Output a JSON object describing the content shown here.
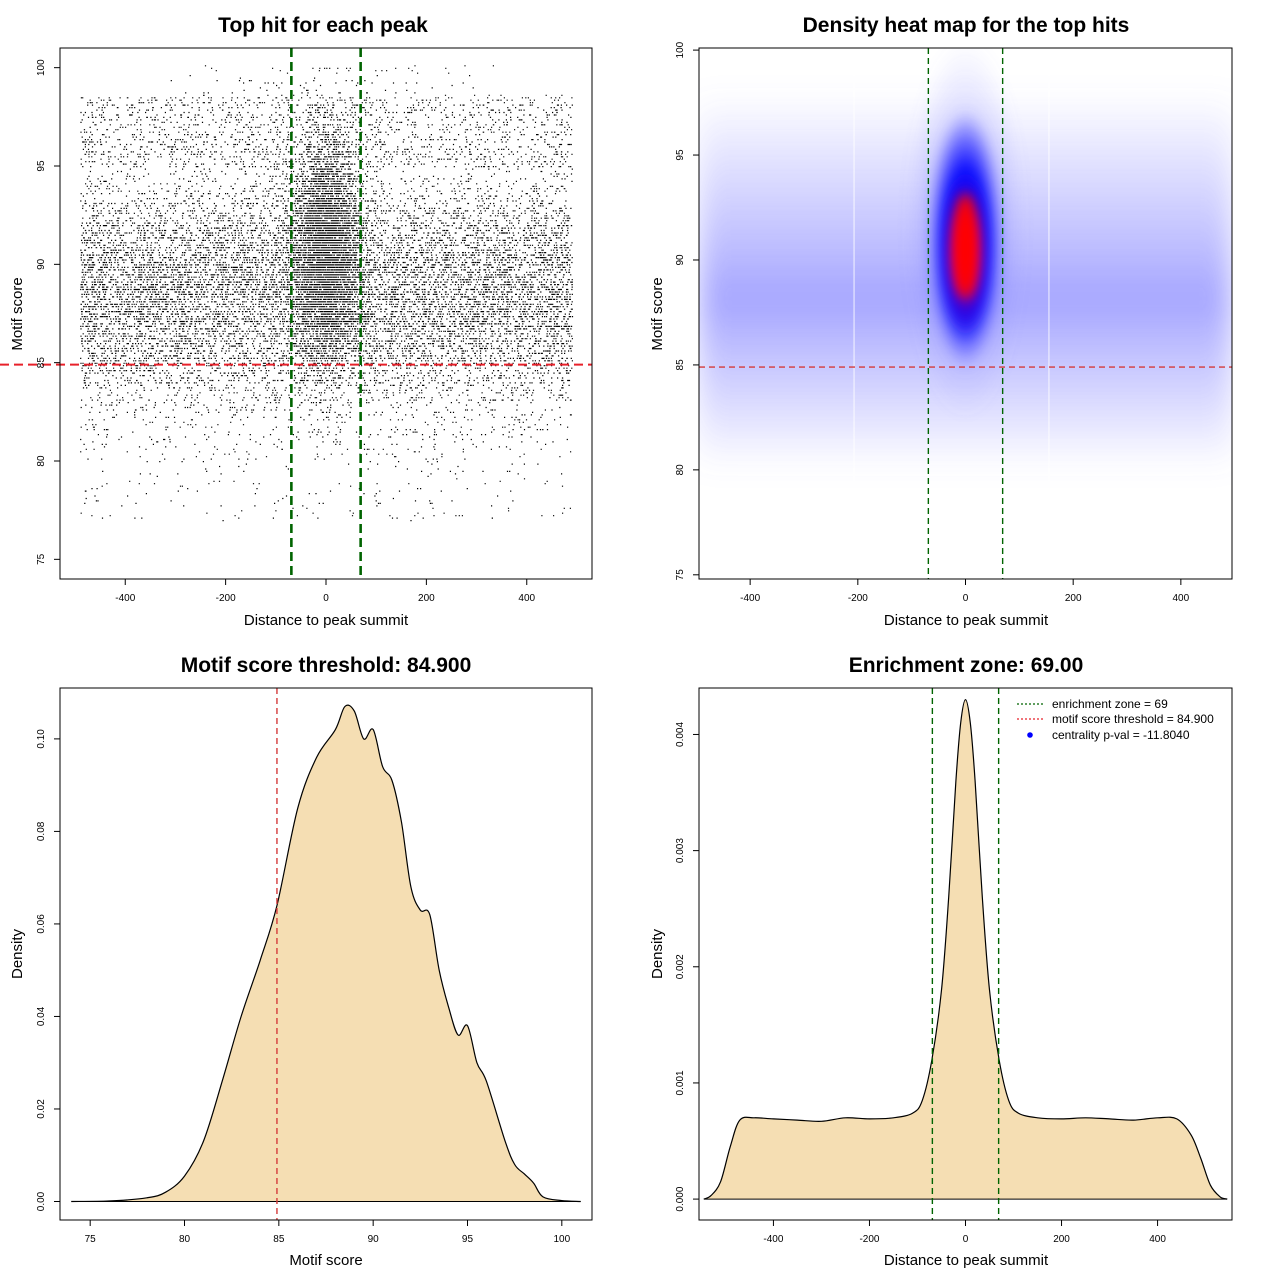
{
  "chart_data": [
    {
      "type": "scatter",
      "title": "Top hit for each peak",
      "xlabel": "Distance to peak summit",
      "ylabel": "Motif score",
      "xlim": [
        -530,
        530
      ],
      "ylim": [
        74,
        101
      ],
      "xticks": [
        -400,
        -200,
        0,
        200,
        400
      ],
      "yticks": [
        75,
        80,
        85,
        90,
        95,
        100
      ],
      "vlines": [
        -69,
        69
      ],
      "hline": 84.9,
      "colors": {
        "points": "#000000",
        "vlines": "#006400",
        "hline": "#e8202a"
      },
      "points_description": "dense top motif hits spanning x in [-490, 490], y mostly 80-100, concentrated near x=0 and y=86-95"
    },
    {
      "type": "heatmap",
      "title": "Density heat map for the top hits",
      "xlabel": "Distance to peak summit",
      "ylabel": "Motif score",
      "xlim": [
        -495,
        495
      ],
      "ylim": [
        74.8,
        100.1
      ],
      "xticks": [
        -400,
        -200,
        0,
        200,
        400
      ],
      "yticks": [
        75,
        80,
        85,
        90,
        95,
        100
      ],
      "vlines": [
        -69,
        69
      ],
      "hline": 84.9,
      "peak": {
        "x": 0,
        "y": 90.3
      },
      "colors": {
        "low": "#ffffff",
        "mid": "#0000ff",
        "high": "#ff0000",
        "vlines": "#006400",
        "hline": "#d43a3a"
      }
    },
    {
      "type": "area",
      "title": "Motif score threshold: 84.900",
      "xlabel": "Motif score",
      "ylabel": "Density",
      "xlim": [
        73.4,
        101.6
      ],
      "ylim": [
        -0.004,
        0.111
      ],
      "xticks": [
        75,
        80,
        85,
        90,
        95,
        100
      ],
      "yticks": [
        0.0,
        0.02,
        0.04,
        0.06,
        0.08,
        0.1
      ],
      "ytick_labels": [
        "0.00",
        "0.02",
        "0.04",
        "0.06",
        "0.08",
        "0.10"
      ],
      "vline": 84.9,
      "fill": "#f5deb3",
      "colors": {
        "vline": "#d43a3a"
      },
      "x": [
        74,
        76,
        78,
        79,
        80,
        81,
        82,
        83,
        84,
        84.9,
        86,
        87,
        88,
        88.5,
        89,
        89.5,
        90,
        90.5,
        91,
        91.5,
        92,
        92.5,
        93,
        93.5,
        94,
        94.5,
        95,
        95.5,
        96,
        97,
        97.5,
        98,
        98.5,
        99,
        100,
        101
      ],
      "y": [
        0.0,
        0.0001,
        0.0008,
        0.002,
        0.0055,
        0.013,
        0.026,
        0.04,
        0.052,
        0.064,
        0.085,
        0.096,
        0.102,
        0.107,
        0.106,
        0.1,
        0.102,
        0.094,
        0.091,
        0.082,
        0.068,
        0.063,
        0.062,
        0.05,
        0.042,
        0.036,
        0.038,
        0.03,
        0.026,
        0.013,
        0.008,
        0.006,
        0.004,
        0.001,
        0.0002,
        0.0
      ]
    },
    {
      "type": "area",
      "title": "Enrichment zone: 69.00",
      "xlabel": "Distance to peak summit",
      "ylabel": "Density",
      "xlim": [
        -555,
        555
      ],
      "ylim": [
        -0.00018,
        0.0044
      ],
      "xticks": [
        -400,
        -200,
        0,
        200,
        400
      ],
      "yticks": [
        0.0,
        0.001,
        0.002,
        0.003,
        0.004
      ],
      "ytick_labels": [
        "0.000",
        "0.001",
        "0.002",
        "0.003",
        "0.004"
      ],
      "vlines": [
        -69,
        69
      ],
      "fill": "#f5deb3",
      "colors": {
        "vlines": "#006400"
      },
      "x": [
        -545,
        -530,
        -510,
        -490,
        -470,
        -440,
        -400,
        -350,
        -300,
        -250,
        -200,
        -150,
        -110,
        -90,
        -70,
        -50,
        -35,
        -20,
        -10,
        0,
        10,
        20,
        35,
        50,
        70,
        90,
        110,
        150,
        200,
        250,
        300,
        350,
        400,
        440,
        470,
        490,
        510,
        530,
        545
      ],
      "y": [
        0.0,
        3e-05,
        0.00015,
        0.00045,
        0.00068,
        0.0007,
        0.00069,
        0.00068,
        0.00067,
        0.0007,
        0.00069,
        0.0007,
        0.00074,
        0.00085,
        0.0012,
        0.0018,
        0.0026,
        0.0036,
        0.0041,
        0.0043,
        0.0041,
        0.0036,
        0.0026,
        0.0018,
        0.0012,
        0.00085,
        0.00074,
        0.0007,
        0.00069,
        0.0007,
        0.00069,
        0.00068,
        0.0007,
        0.00069,
        0.00055,
        0.00035,
        0.00012,
        2e-05,
        0.0
      ],
      "legend": [
        {
          "label": "enrichment zone = 69",
          "style": "dotted",
          "color": "#006400"
        },
        {
          "label": "motif score threshold = 84.900",
          "style": "dotted",
          "color": "#e8202a"
        },
        {
          "label": "centrality p-val = -11.8040",
          "style": "dot",
          "color": "#0000ff"
        }
      ],
      "legend_position": "top-right"
    }
  ]
}
